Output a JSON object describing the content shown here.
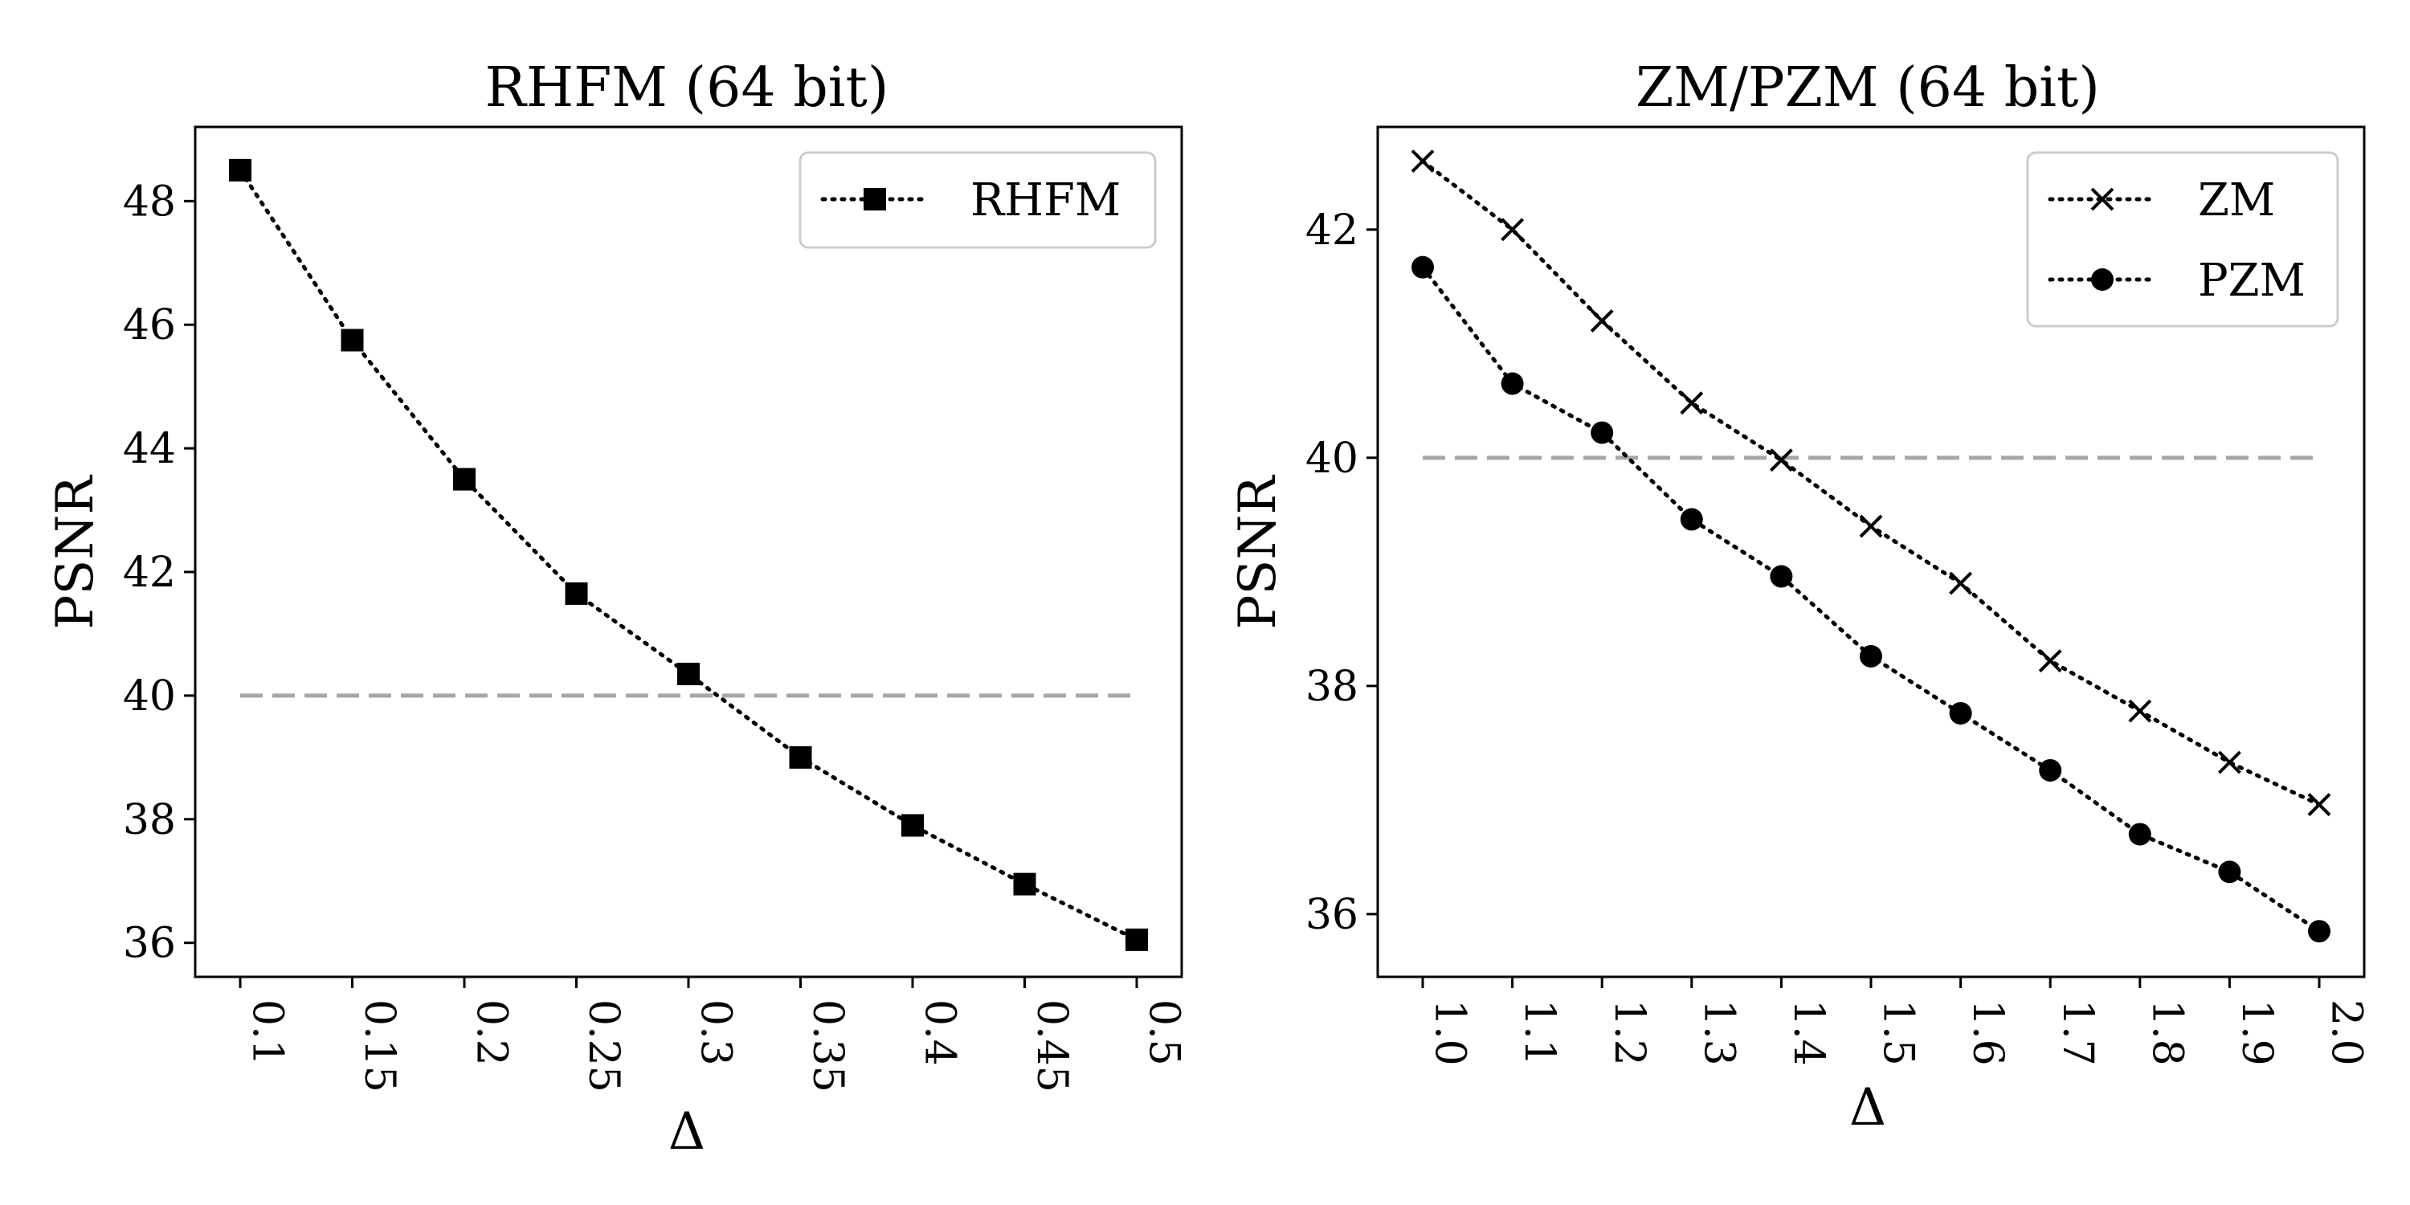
{
  "chart_data": [
    {
      "type": "line",
      "title": "RHFM (64 bit)",
      "xlabel": "Δ",
      "ylabel": "PSNR",
      "categories": [
        "0.1",
        "0.15",
        "0.2",
        "0.25",
        "0.3",
        "0.35",
        "0.4",
        "0.45",
        "0.5"
      ],
      "ylim": [
        35.45,
        49.2
      ],
      "yticks": [
        36,
        38,
        40,
        42,
        44,
        46,
        48
      ],
      "series": [
        {
          "name": "RHFM",
          "marker": "square",
          "values": [
            48.5,
            45.75,
            43.5,
            41.65,
            40.35,
            39.0,
            37.9,
            36.95,
            36.05
          ]
        }
      ],
      "reference_line": {
        "y": 40,
        "style": "dashed",
        "color": "#a6a6a6"
      },
      "legend": "top-right",
      "grid": false
    },
    {
      "type": "line",
      "title": "ZM/PZM (64 bit)",
      "xlabel": "Δ",
      "ylabel": "PSNR",
      "categories": [
        "1.0",
        "1.1",
        "1.2",
        "1.3",
        "1.4",
        "1.5",
        "1.6",
        "1.7",
        "1.8",
        "1.9",
        "2.0"
      ],
      "ylim": [
        35.45,
        42.9
      ],
      "yticks": [
        36,
        38,
        40,
        42
      ],
      "series": [
        {
          "name": "ZM",
          "marker": "x",
          "values": [
            42.6,
            42.0,
            41.2,
            40.48,
            39.98,
            39.4,
            38.9,
            38.22,
            37.78,
            37.33,
            36.96
          ]
        },
        {
          "name": "PZM",
          "marker": "circle",
          "values": [
            41.67,
            40.65,
            40.22,
            39.46,
            38.96,
            38.26,
            37.76,
            37.26,
            36.7,
            36.37,
            35.85
          ]
        }
      ],
      "reference_line": {
        "y": 40,
        "style": "dashed",
        "color": "#a6a6a6"
      },
      "legend": "top-right",
      "grid": false
    }
  ]
}
